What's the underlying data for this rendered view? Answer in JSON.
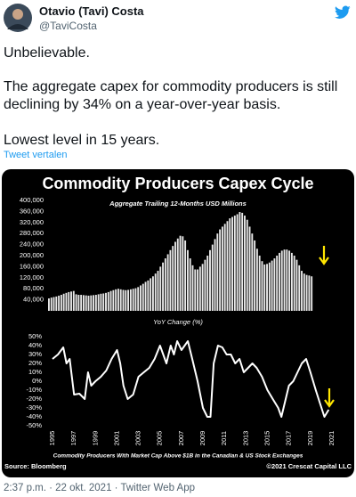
{
  "author": {
    "name": "Otavio (Tavi) Costa",
    "handle": "@TaviCosta"
  },
  "tweet": {
    "paragraphs": [
      "Unbelievable.",
      "The aggregate capex for commodity producers is still declining by 34% on a year-over-year basis.",
      "Lowest level in 15 years."
    ],
    "translate": "Tweet vertalen"
  },
  "media": {
    "footnote": "Commodity Producers With Market Cap Above $1B in the Canadian & US Stock Exchanges",
    "source": "Source: Bloomberg",
    "copyright": "©2021 Crescat Capital LLC",
    "chart_data": [
      {
        "type": "bar",
        "title": "Commodity Producers Capex Cycle",
        "subtitle": "Aggregate Trailing 12-Months USD Millions",
        "color": "#e8e8e8",
        "x": [
          1995,
          1995.25,
          1995.5,
          1995.75,
          1996,
          1996.25,
          1996.5,
          1996.75,
          1997,
          1997.25,
          1997.5,
          1997.75,
          1998,
          1998.25,
          1998.5,
          1998.75,
          1999,
          1999.25,
          1999.5,
          1999.75,
          2000,
          2000.25,
          2000.5,
          2000.75,
          2001,
          2001.25,
          2001.5,
          2001.75,
          2002,
          2002.25,
          2002.5,
          2002.75,
          2003,
          2003.25,
          2003.5,
          2003.75,
          2004,
          2004.25,
          2004.5,
          2004.75,
          2005,
          2005.25,
          2005.5,
          2005.75,
          2006,
          2006.25,
          2006.5,
          2006.75,
          2007,
          2007.25,
          2007.5,
          2007.75,
          2008,
          2008.25,
          2008.5,
          2008.75,
          2009,
          2009.25,
          2009.5,
          2009.75,
          2010,
          2010.25,
          2010.5,
          2010.75,
          2011,
          2011.25,
          2011.5,
          2011.75,
          2012,
          2012.25,
          2012.5,
          2012.75,
          2013,
          2013.25,
          2013.5,
          2013.75,
          2014,
          2014.25,
          2014.5,
          2014.75,
          2015,
          2015.25,
          2015.5,
          2015.75,
          2016,
          2016.25,
          2016.5,
          2016.75,
          2017,
          2017.25,
          2017.5,
          2017.75,
          2018,
          2018.25,
          2018.5,
          2018.75,
          2019,
          2019.25,
          2019.5,
          2019.75,
          2020,
          2020.25,
          2020.5,
          2020.75,
          2021,
          2021.25,
          2021.5
        ],
        "values": [
          45000,
          48000,
          50000,
          52000,
          55000,
          58000,
          62000,
          65000,
          68000,
          70000,
          72000,
          60000,
          58000,
          58000,
          57000,
          56000,
          55000,
          56000,
          57000,
          58000,
          60000,
          62000,
          63000,
          65000,
          68000,
          72000,
          75000,
          78000,
          80000,
          78000,
          76000,
          75000,
          76000,
          78000,
          80000,
          82000,
          86000,
          92000,
          98000,
          105000,
          110000,
          118000,
          125000,
          135000,
          145000,
          160000,
          175000,
          190000,
          205000,
          220000,
          235000,
          250000,
          262000,
          272000,
          270000,
          255000,
          220000,
          190000,
          165000,
          150000,
          150000,
          160000,
          170000,
          185000,
          200000,
          220000,
          240000,
          260000,
          280000,
          295000,
          305000,
          315000,
          325000,
          335000,
          340000,
          345000,
          350000,
          358000,
          355000,
          345000,
          330000,
          305000,
          280000,
          255000,
          225000,
          200000,
          180000,
          168000,
          170000,
          175000,
          182000,
          190000,
          200000,
          210000,
          218000,
          222000,
          222000,
          218000,
          210000,
          200000,
          185000,
          165000,
          145000,
          135000,
          130000,
          128000,
          125000
        ],
        "xlim": [
          1995,
          2021.75
        ],
        "ylim": [
          0,
          400000
        ],
        "yticks": [
          {
            "value": 40000,
            "label": "40,000"
          },
          {
            "value": 80000,
            "label": "80,000"
          },
          {
            "value": 120000,
            "label": "120,000"
          },
          {
            "value": 160000,
            "label": "160,000"
          },
          {
            "value": 200000,
            "label": "200,000"
          },
          {
            "value": 240000,
            "label": "240,000"
          },
          {
            "value": 280000,
            "label": "280,000"
          },
          {
            "value": 320000,
            "label": "320,000"
          },
          {
            "value": 360000,
            "label": "360,000"
          },
          {
            "value": 400000,
            "label": "400,000"
          }
        ]
      },
      {
        "type": "line",
        "title": "YoY Change (%)",
        "color": "#ffffff",
        "x": [
          1995,
          1995.5,
          1996,
          1996.3,
          1996.6,
          1997,
          1997.5,
          1998,
          1998.3,
          1998.6,
          1999,
          1999.5,
          2000,
          2000.5,
          2001,
          2001.3,
          2001.6,
          2002,
          2002.5,
          2003,
          2003.5,
          2004,
          2004.5,
          2005,
          2005.3,
          2005.6,
          2006,
          2006.3,
          2006.6,
          2007,
          2007.3,
          2007.6,
          2008,
          2008.5,
          2009,
          2009.4,
          2009.7,
          2010,
          2010.4,
          2010.8,
          2011.2,
          2011.6,
          2012,
          2012.4,
          2012.8,
          2013.2,
          2013.6,
          2014,
          2014.5,
          2015,
          2015.5,
          2016,
          2016.3,
          2016.7,
          2017,
          2017.4,
          2017.8,
          2018.2,
          2018.6,
          2019,
          2019.5,
          2019.9,
          2020.3,
          2020.7
        ],
        "values": [
          25,
          30,
          38,
          20,
          25,
          -15,
          -14,
          -20,
          10,
          -5,
          0,
          5,
          12,
          25,
          35,
          20,
          -5,
          -20,
          -15,
          5,
          10,
          15,
          25,
          40,
          30,
          20,
          40,
          30,
          45,
          35,
          40,
          45,
          25,
          0,
          -30,
          -40,
          -40,
          20,
          40,
          38,
          30,
          30,
          20,
          25,
          10,
          15,
          20,
          15,
          5,
          -10,
          -20,
          -30,
          -40,
          -20,
          -5,
          0,
          10,
          20,
          25,
          10,
          -10,
          -25,
          -40,
          -32
        ],
        "xlim": [
          1994.75,
          2022
        ],
        "ylim": [
          -50,
          50
        ],
        "yticks": [
          {
            "value": 50,
            "label": "50%"
          },
          {
            "value": 40,
            "label": "40%"
          },
          {
            "value": 30,
            "label": "30%"
          },
          {
            "value": 20,
            "label": "20%"
          },
          {
            "value": 10,
            "label": "10%"
          },
          {
            "value": 0,
            "label": "0%"
          },
          {
            "value": -10,
            "label": "-10%"
          },
          {
            "value": -20,
            "label": "-20%"
          },
          {
            "value": -30,
            "label": "-30%"
          },
          {
            "value": -40,
            "label": "-40%"
          },
          {
            "value": -50,
            "label": "-50%"
          }
        ],
        "xticks": [
          1995,
          1997,
          1999,
          2001,
          2003,
          2005,
          2007,
          2009,
          2011,
          2013,
          2015,
          2017,
          2019,
          2021
        ]
      }
    ]
  },
  "footer": "2:37 p.m. · 22 okt. 2021 · Twitter Web App"
}
